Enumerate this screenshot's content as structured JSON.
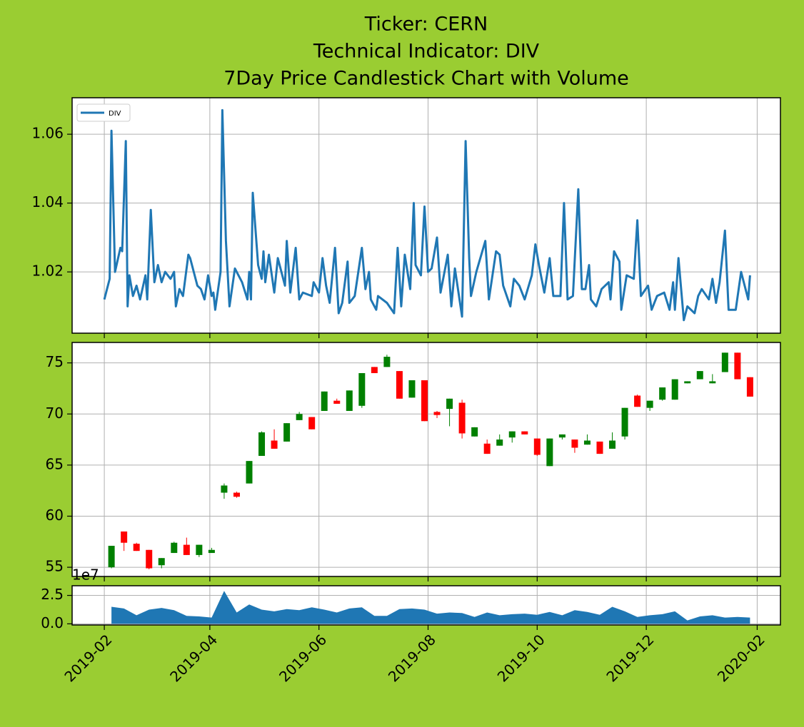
{
  "chart_data": [
    {
      "type": "line",
      "title": [
        "Ticker: CERN",
        "Technical Indicator: DIV",
        "7Day Price Candlestick Chart with Volume"
      ],
      "legend": "upper left",
      "grid": true,
      "xlim": [
        "2019-01-14",
        "2020-02-14"
      ],
      "xticks": [
        "2019-02",
        "2019-04",
        "2019-06",
        "2019-08",
        "2019-10",
        "2019-12",
        "2020-02"
      ],
      "ylim": [
        1.0022,
        1.0706
      ],
      "yticks": [
        1.02,
        1.04,
        1.06
      ],
      "series": [
        {
          "name": "DIV",
          "color": "#1f77b4",
          "x": [
            "2019-02-01",
            "2019-02-04",
            "2019-02-05",
            "2019-02-07",
            "2019-02-10",
            "2019-02-11",
            "2019-02-13",
            "2019-02-14",
            "2019-02-15",
            "2019-02-17",
            "2019-02-19",
            "2019-02-21",
            "2019-02-24",
            "2019-02-25",
            "2019-02-27",
            "2019-03-01",
            "2019-03-03",
            "2019-03-05",
            "2019-03-07",
            "2019-03-10",
            "2019-03-12",
            "2019-03-13",
            "2019-03-15",
            "2019-03-17",
            "2019-03-20",
            "2019-03-21",
            "2019-03-25",
            "2019-03-27",
            "2019-03-29",
            "2019-03-31",
            "2019-04-02",
            "2019-04-03",
            "2019-04-04",
            "2019-04-07",
            "2019-04-08",
            "2019-04-10",
            "2019-04-12",
            "2019-04-15",
            "2019-04-19",
            "2019-04-22",
            "2019-04-23",
            "2019-04-24",
            "2019-04-25",
            "2019-04-28",
            "2019-04-30",
            "2019-05-01",
            "2019-05-02",
            "2019-05-04",
            "2019-05-07",
            "2019-05-09",
            "2019-05-12",
            "2019-05-13",
            "2019-05-14",
            "2019-05-16",
            "2019-05-19",
            "2019-05-21",
            "2019-05-23",
            "2019-05-28",
            "2019-05-29",
            "2019-06-01",
            "2019-06-03",
            "2019-06-05",
            "2019-06-07",
            "2019-06-10",
            "2019-06-12",
            "2019-06-14",
            "2019-06-17",
            "2019-06-18",
            "2019-06-21",
            "2019-06-25",
            "2019-06-27",
            "2019-06-29",
            "2019-06-30",
            "2019-07-03",
            "2019-07-04",
            "2019-07-09",
            "2019-07-13",
            "2019-07-15",
            "2019-07-17",
            "2019-07-19",
            "2019-07-22",
            "2019-07-24",
            "2019-07-25",
            "2019-07-28",
            "2019-07-30",
            "2019-08-01",
            "2019-08-03",
            "2019-08-06",
            "2019-08-08",
            "2019-08-12",
            "2019-08-14",
            "2019-08-16",
            "2019-08-20",
            "2019-08-22",
            "2019-08-24",
            "2019-08-25",
            "2019-08-28",
            "2019-09-02",
            "2019-09-04",
            "2019-09-08",
            "2019-09-10",
            "2019-09-12",
            "2019-09-16",
            "2019-09-18",
            "2019-09-21",
            "2019-09-24",
            "2019-09-28",
            "2019-09-30",
            "2019-10-02",
            "2019-10-05",
            "2019-10-08",
            "2019-10-10",
            "2019-10-14",
            "2019-10-16",
            "2019-10-18",
            "2019-10-21",
            "2019-10-24",
            "2019-10-26",
            "2019-10-28",
            "2019-10-30",
            "2019-10-31",
            "2019-11-03",
            "2019-11-06",
            "2019-11-10",
            "2019-11-11",
            "2019-11-13",
            "2019-11-16",
            "2019-11-17",
            "2019-11-20",
            "2019-11-24",
            "2019-11-26",
            "2019-11-28",
            "2019-12-02",
            "2019-12-04",
            "2019-12-07",
            "2019-12-11",
            "2019-12-14",
            "2019-12-16",
            "2019-12-17",
            "2019-12-19",
            "2019-12-22",
            "2019-12-24",
            "2019-12-28",
            "2019-12-30",
            "2020-01-01",
            "2020-01-05",
            "2020-01-07",
            "2020-01-09",
            "2020-01-11",
            "2020-01-14",
            "2020-01-16",
            "2020-01-20",
            "2020-01-23",
            "2020-01-27",
            "2020-01-28"
          ],
          "values": [
            1.012,
            1.018,
            1.061,
            1.02,
            1.027,
            1.026,
            1.058,
            1.01,
            1.019,
            1.013,
            1.016,
            1.012,
            1.019,
            1.012,
            1.038,
            1.017,
            1.022,
            1.017,
            1.02,
            1.018,
            1.02,
            1.01,
            1.015,
            1.013,
            1.025,
            1.024,
            1.016,
            1.015,
            1.012,
            1.019,
            1.013,
            1.014,
            1.009,
            1.02,
            1.067,
            1.029,
            1.01,
            1.021,
            1.017,
            1.012,
            1.02,
            1.012,
            1.043,
            1.022,
            1.018,
            1.026,
            1.017,
            1.025,
            1.014,
            1.024,
            1.018,
            1.016,
            1.029,
            1.014,
            1.027,
            1.012,
            1.014,
            1.013,
            1.017,
            1.014,
            1.024,
            1.016,
            1.011,
            1.027,
            1.008,
            1.011,
            1.023,
            1.011,
            1.013,
            1.027,
            1.015,
            1.02,
            1.012,
            1.009,
            1.013,
            1.011,
            1.008,
            1.027,
            1.01,
            1.025,
            1.015,
            1.04,
            1.022,
            1.019,
            1.039,
            1.02,
            1.021,
            1.03,
            1.014,
            1.025,
            1.01,
            1.021,
            1.007,
            1.058,
            1.024,
            1.013,
            1.02,
            1.029,
            1.012,
            1.026,
            1.025,
            1.016,
            1.01,
            1.018,
            1.016,
            1.012,
            1.019,
            1.028,
            1.022,
            1.014,
            1.024,
            1.013,
            1.013,
            1.04,
            1.012,
            1.013,
            1.044,
            1.015,
            1.015,
            1.022,
            1.012,
            1.01,
            1.015,
            1.017,
            1.012,
            1.026,
            1.023,
            1.009,
            1.019,
            1.018,
            1.035,
            1.013,
            1.016,
            1.009,
            1.013,
            1.014,
            1.009,
            1.017,
            1.009,
            1.024,
            1.006,
            1.01,
            1.008,
            1.013,
            1.015,
            1.012,
            1.018,
            1.011,
            1.017,
            1.032,
            1.009,
            1.009,
            1.02,
            1.012,
            1.019
          ]
        }
      ]
    },
    {
      "type": "candlestick",
      "grid": true,
      "xlim": [
        "2019-01-14",
        "2020-02-14"
      ],
      "xticks": [
        "2019-02",
        "2019-04",
        "2019-06",
        "2019-08",
        "2019-10",
        "2019-12",
        "2020-02"
      ],
      "ylim": [
        54.1,
        77.0
      ],
      "yticks": [
        55,
        60,
        65,
        70,
        75
      ],
      "up_color": "#008000",
      "down_color": "#ff0000",
      "x": [
        "2019-02-05",
        "2019-02-12",
        "2019-02-19",
        "2019-02-26",
        "2019-03-05",
        "2019-03-12",
        "2019-03-19",
        "2019-03-26",
        "2019-04-02",
        "2019-04-09",
        "2019-04-16",
        "2019-04-23",
        "2019-04-30",
        "2019-05-07",
        "2019-05-14",
        "2019-05-21",
        "2019-05-28",
        "2019-06-04",
        "2019-06-11",
        "2019-06-18",
        "2019-06-25",
        "2019-07-02",
        "2019-07-09",
        "2019-07-16",
        "2019-07-23",
        "2019-07-30",
        "2019-08-06",
        "2019-08-13",
        "2019-08-20",
        "2019-08-27",
        "2019-09-03",
        "2019-09-10",
        "2019-09-17",
        "2019-09-24",
        "2019-10-01",
        "2019-10-08",
        "2019-10-15",
        "2019-10-22",
        "2019-10-29",
        "2019-11-05",
        "2019-11-12",
        "2019-11-19",
        "2019-11-26",
        "2019-12-03",
        "2019-12-10",
        "2019-12-17",
        "2019-12-24",
        "2019-12-31",
        "2020-01-07",
        "2020-01-14",
        "2020-01-21",
        "2020-01-28"
      ],
      "open": [
        55.0,
        58.5,
        57.3,
        56.7,
        55.2,
        56.4,
        57.2,
        56.2,
        56.4,
        62.3,
        62.3,
        63.2,
        65.9,
        67.4,
        67.3,
        69.4,
        69.7,
        70.3,
        71.3,
        70.3,
        70.8,
        74.6,
        74.6,
        74.2,
        71.6,
        73.3,
        70.2,
        70.5,
        71.1,
        67.8,
        67.1,
        66.9,
        67.7,
        68.3,
        67.6,
        64.9,
        67.7,
        67.5,
        67.0,
        67.3,
        66.6,
        67.8,
        71.8,
        70.6,
        71.4,
        71.4,
        73.0,
        73.4,
        73.0,
        74.1,
        76.0,
        73.6
      ],
      "high": [
        57.1,
        58.5,
        57.4,
        56.7,
        55.9,
        57.5,
        57.9,
        57.2,
        56.9,
        63.2,
        62.4,
        65.4,
        68.3,
        68.5,
        69.1,
        70.2,
        69.7,
        72.2,
        71.5,
        72.3,
        74.0,
        74.6,
        75.8,
        74.2,
        73.3,
        73.3,
        70.3,
        71.5,
        71.4,
        68.7,
        67.5,
        68.0,
        68.3,
        68.3,
        67.6,
        67.6,
        68.0,
        67.5,
        68.0,
        67.3,
        68.2,
        70.6,
        71.9,
        71.3,
        72.6,
        73.4,
        73.2,
        74.2,
        73.9,
        76.0,
        76.0,
        73.6
      ],
      "low": [
        54.9,
        56.6,
        56.6,
        54.8,
        54.9,
        56.4,
        56.2,
        56.0,
        56.4,
        61.7,
        61.8,
        63.2,
        65.9,
        66.6,
        67.3,
        69.4,
        68.5,
        70.3,
        71.0,
        70.3,
        70.6,
        74.0,
        74.6,
        71.5,
        71.6,
        69.3,
        69.6,
        68.8,
        67.6,
        67.8,
        66.1,
        66.9,
        67.2,
        68.0,
        65.9,
        64.9,
        67.5,
        66.2,
        67.0,
        66.1,
        66.6,
        67.5,
        70.7,
        70.3,
        71.3,
        71.4,
        73.0,
        73.4,
        73.0,
        74.1,
        73.4,
        71.7
      ],
      "close": [
        57.1,
        57.4,
        56.6,
        54.9,
        55.9,
        57.4,
        56.2,
        57.2,
        56.7,
        63.0,
        61.9,
        65.4,
        68.2,
        66.6,
        69.1,
        70.0,
        68.5,
        72.2,
        71.0,
        72.3,
        74.0,
        74.0,
        75.6,
        71.5,
        73.3,
        69.3,
        69.9,
        71.5,
        68.1,
        68.7,
        66.1,
        67.5,
        68.3,
        68.0,
        66.0,
        67.6,
        68.0,
        66.7,
        67.4,
        66.1,
        67.4,
        70.6,
        70.7,
        71.3,
        72.6,
        73.4,
        73.2,
        74.2,
        73.2,
        76.0,
        73.4,
        71.7
      ]
    },
    {
      "type": "area",
      "grid": true,
      "color": "#1f77b4",
      "xlim": [
        "2019-01-14",
        "2020-02-14"
      ],
      "xticks": [
        "2019-02",
        "2019-04",
        "2019-06",
        "2019-08",
        "2019-10",
        "2019-12",
        "2020-02"
      ],
      "ylim": [
        -0.1,
        3.35
      ],
      "yticks": [
        {
          "value": 0,
          "label": "0.0"
        },
        2.5
      ],
      "y_offset_label": "1e7",
      "x": [
        "2019-02-05",
        "2019-02-12",
        "2019-02-19",
        "2019-02-26",
        "2019-03-05",
        "2019-03-12",
        "2019-03-19",
        "2019-03-26",
        "2019-04-02",
        "2019-04-09",
        "2019-04-16",
        "2019-04-23",
        "2019-04-30",
        "2019-05-07",
        "2019-05-14",
        "2019-05-21",
        "2019-05-28",
        "2019-06-04",
        "2019-06-11",
        "2019-06-18",
        "2019-06-25",
        "2019-07-02",
        "2019-07-09",
        "2019-07-16",
        "2019-07-23",
        "2019-07-30",
        "2019-08-06",
        "2019-08-13",
        "2019-08-20",
        "2019-08-27",
        "2019-09-03",
        "2019-09-10",
        "2019-09-17",
        "2019-09-24",
        "2019-10-01",
        "2019-10-08",
        "2019-10-15",
        "2019-10-22",
        "2019-10-29",
        "2019-11-05",
        "2019-11-12",
        "2019-11-19",
        "2019-11-26",
        "2019-12-03",
        "2019-12-10",
        "2019-12-17",
        "2019-12-24",
        "2019-12-31",
        "2020-01-07",
        "2020-01-14",
        "2020-01-21",
        "2020-01-28"
      ],
      "values": [
        1.5,
        1.35,
        0.75,
        1.25,
        1.4,
        1.2,
        0.7,
        0.65,
        0.55,
        2.9,
        1.0,
        1.7,
        1.25,
        1.1,
        1.3,
        1.2,
        1.45,
        1.25,
        1.0,
        1.35,
        1.45,
        0.7,
        0.7,
        1.3,
        1.35,
        1.25,
        0.9,
        1.0,
        0.95,
        0.6,
        1.0,
        0.75,
        0.85,
        0.9,
        0.8,
        1.05,
        0.75,
        1.2,
        1.05,
        0.8,
        1.5,
        1.1,
        0.6,
        0.75,
        0.85,
        1.1,
        0.3,
        0.65,
        0.75,
        0.55,
        0.6,
        0.55
      ]
    }
  ]
}
